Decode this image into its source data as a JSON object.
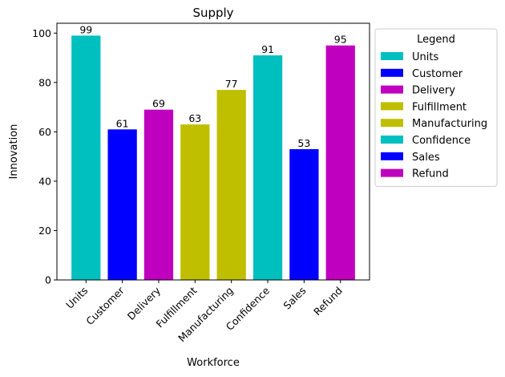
{
  "chart_data": {
    "type": "bar",
    "title": "Supply",
    "xlabel": "Workforce",
    "ylabel": "Innovation",
    "categories": [
      "Units",
      "Customer",
      "Delivery",
      "Fulfillment",
      "Manufacturing",
      "Confidence",
      "Sales",
      "Refund"
    ],
    "values": [
      99,
      61,
      69,
      63,
      77,
      91,
      53,
      95
    ],
    "colors": [
      "#00bfbf",
      "#0000ff",
      "#bf00bf",
      "#bfbf00",
      "#bfbf00",
      "#00bfbf",
      "#0000ff",
      "#bf00bf"
    ],
    "ylim": [
      0,
      104
    ],
    "yticks": [
      0,
      20,
      40,
      60,
      80,
      100
    ],
    "grid": false,
    "legend": {
      "title": "Legend",
      "placement": "outside-right",
      "entries": [
        "Units",
        "Customer",
        "Delivery",
        "Fulfillment",
        "Manufacturing",
        "Confidence",
        "Sales",
        "Refund"
      ]
    }
  }
}
